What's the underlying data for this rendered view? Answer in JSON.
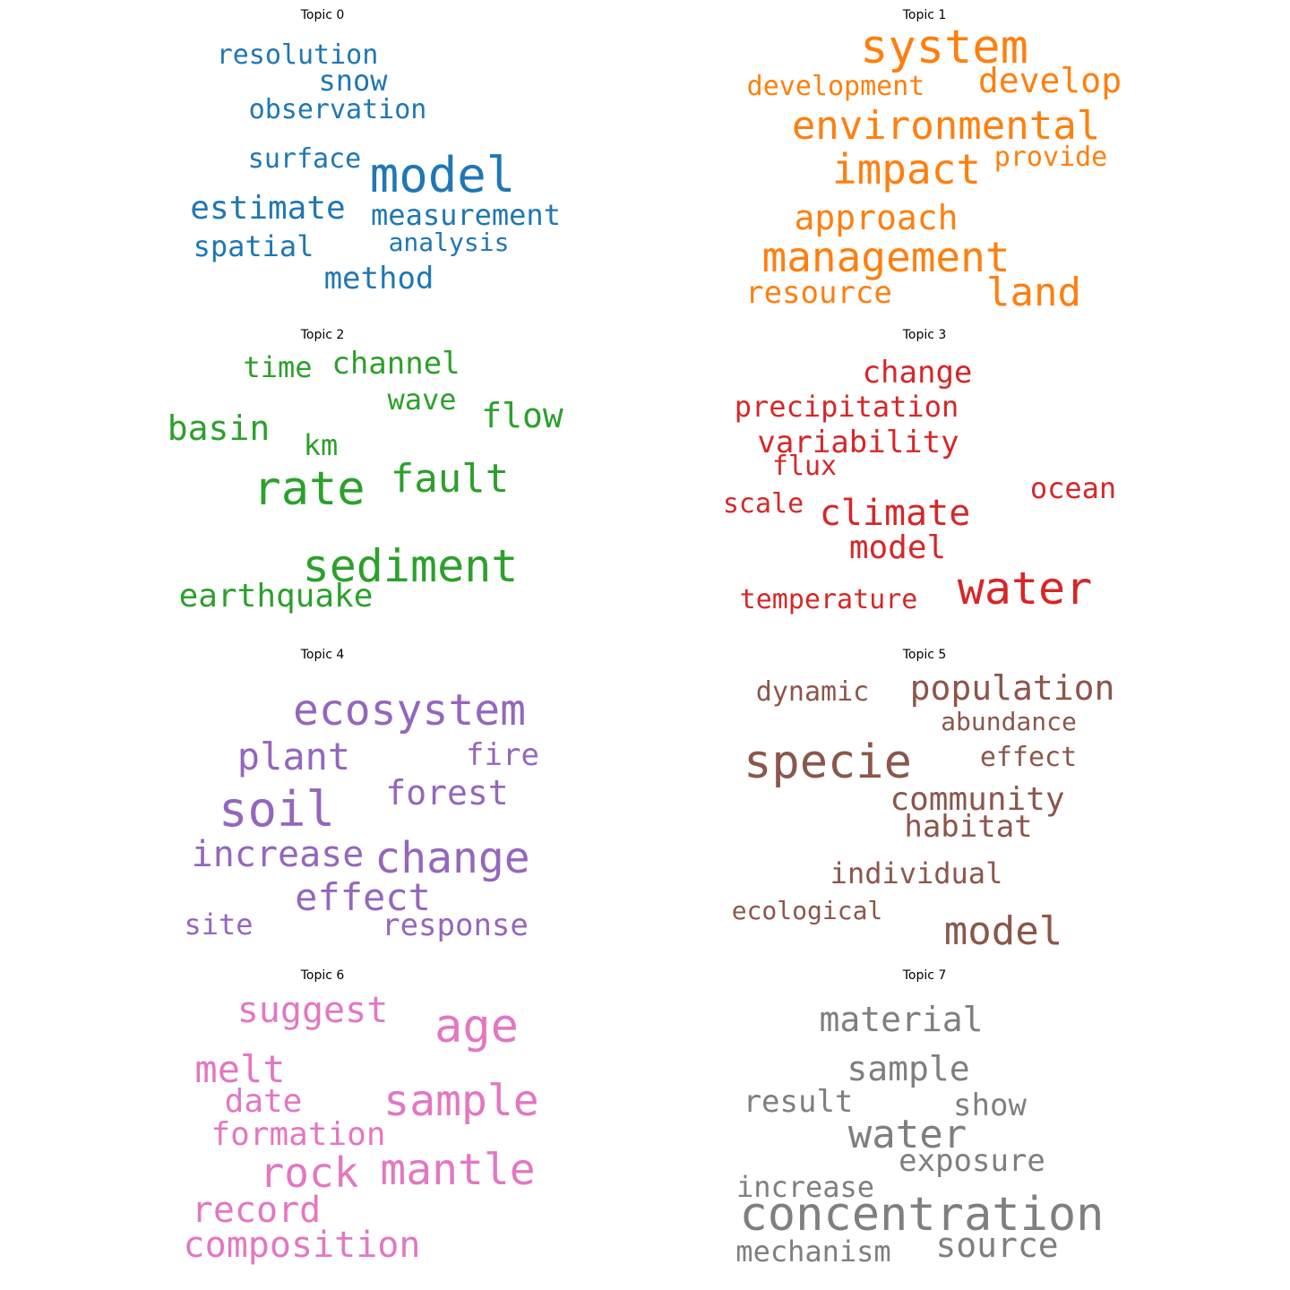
{
  "chart_data": {
    "type": "wordcloud",
    "panels": [
      {
        "title": "Topic 0",
        "color": "#1f77b4",
        "words": [
          "model",
          "estimate",
          "measurement",
          "method",
          "snow",
          "observation",
          "surface",
          "spatial",
          "resolution",
          "analysis"
        ]
      },
      {
        "title": "Topic 1",
        "color": "#ff7f0e",
        "words": [
          "system",
          "environmental",
          "impact",
          "management",
          "approach",
          "land",
          "develop",
          "resource",
          "development",
          "provide"
        ]
      },
      {
        "title": "Topic 2",
        "color": "#2ca02c",
        "words": [
          "rate",
          "sediment",
          "fault",
          "flow",
          "basin",
          "channel",
          "earthquake",
          "wave",
          "time",
          "km"
        ]
      },
      {
        "title": "Topic 3",
        "color": "#d62728",
        "words": [
          "water",
          "climate",
          "change",
          "model",
          "variability",
          "ocean",
          "precipitation",
          "temperature",
          "scale",
          "flux"
        ]
      },
      {
        "title": "Topic 4",
        "color": "#9467bd",
        "words": [
          "ecosystem",
          "soil",
          "change",
          "plant",
          "effect",
          "forest",
          "increase",
          "response",
          "fire",
          "site"
        ]
      },
      {
        "title": "Topic 5",
        "color": "#8c564b",
        "words": [
          "specie",
          "population",
          "model",
          "community",
          "habitat",
          "individual",
          "abundance",
          "effect",
          "dynamic",
          "ecological"
        ]
      },
      {
        "title": "Topic 6",
        "color": "#e377c2",
        "words": [
          "age",
          "sample",
          "mantle",
          "rock",
          "melt",
          "suggest",
          "composition",
          "record",
          "formation",
          "date"
        ]
      },
      {
        "title": "Topic 7",
        "color": "#7f7f7f",
        "words": [
          "concentration",
          "water",
          "material",
          "sample",
          "exposure",
          "result",
          "show",
          "source",
          "mechanism",
          "increase"
        ]
      }
    ]
  }
}
